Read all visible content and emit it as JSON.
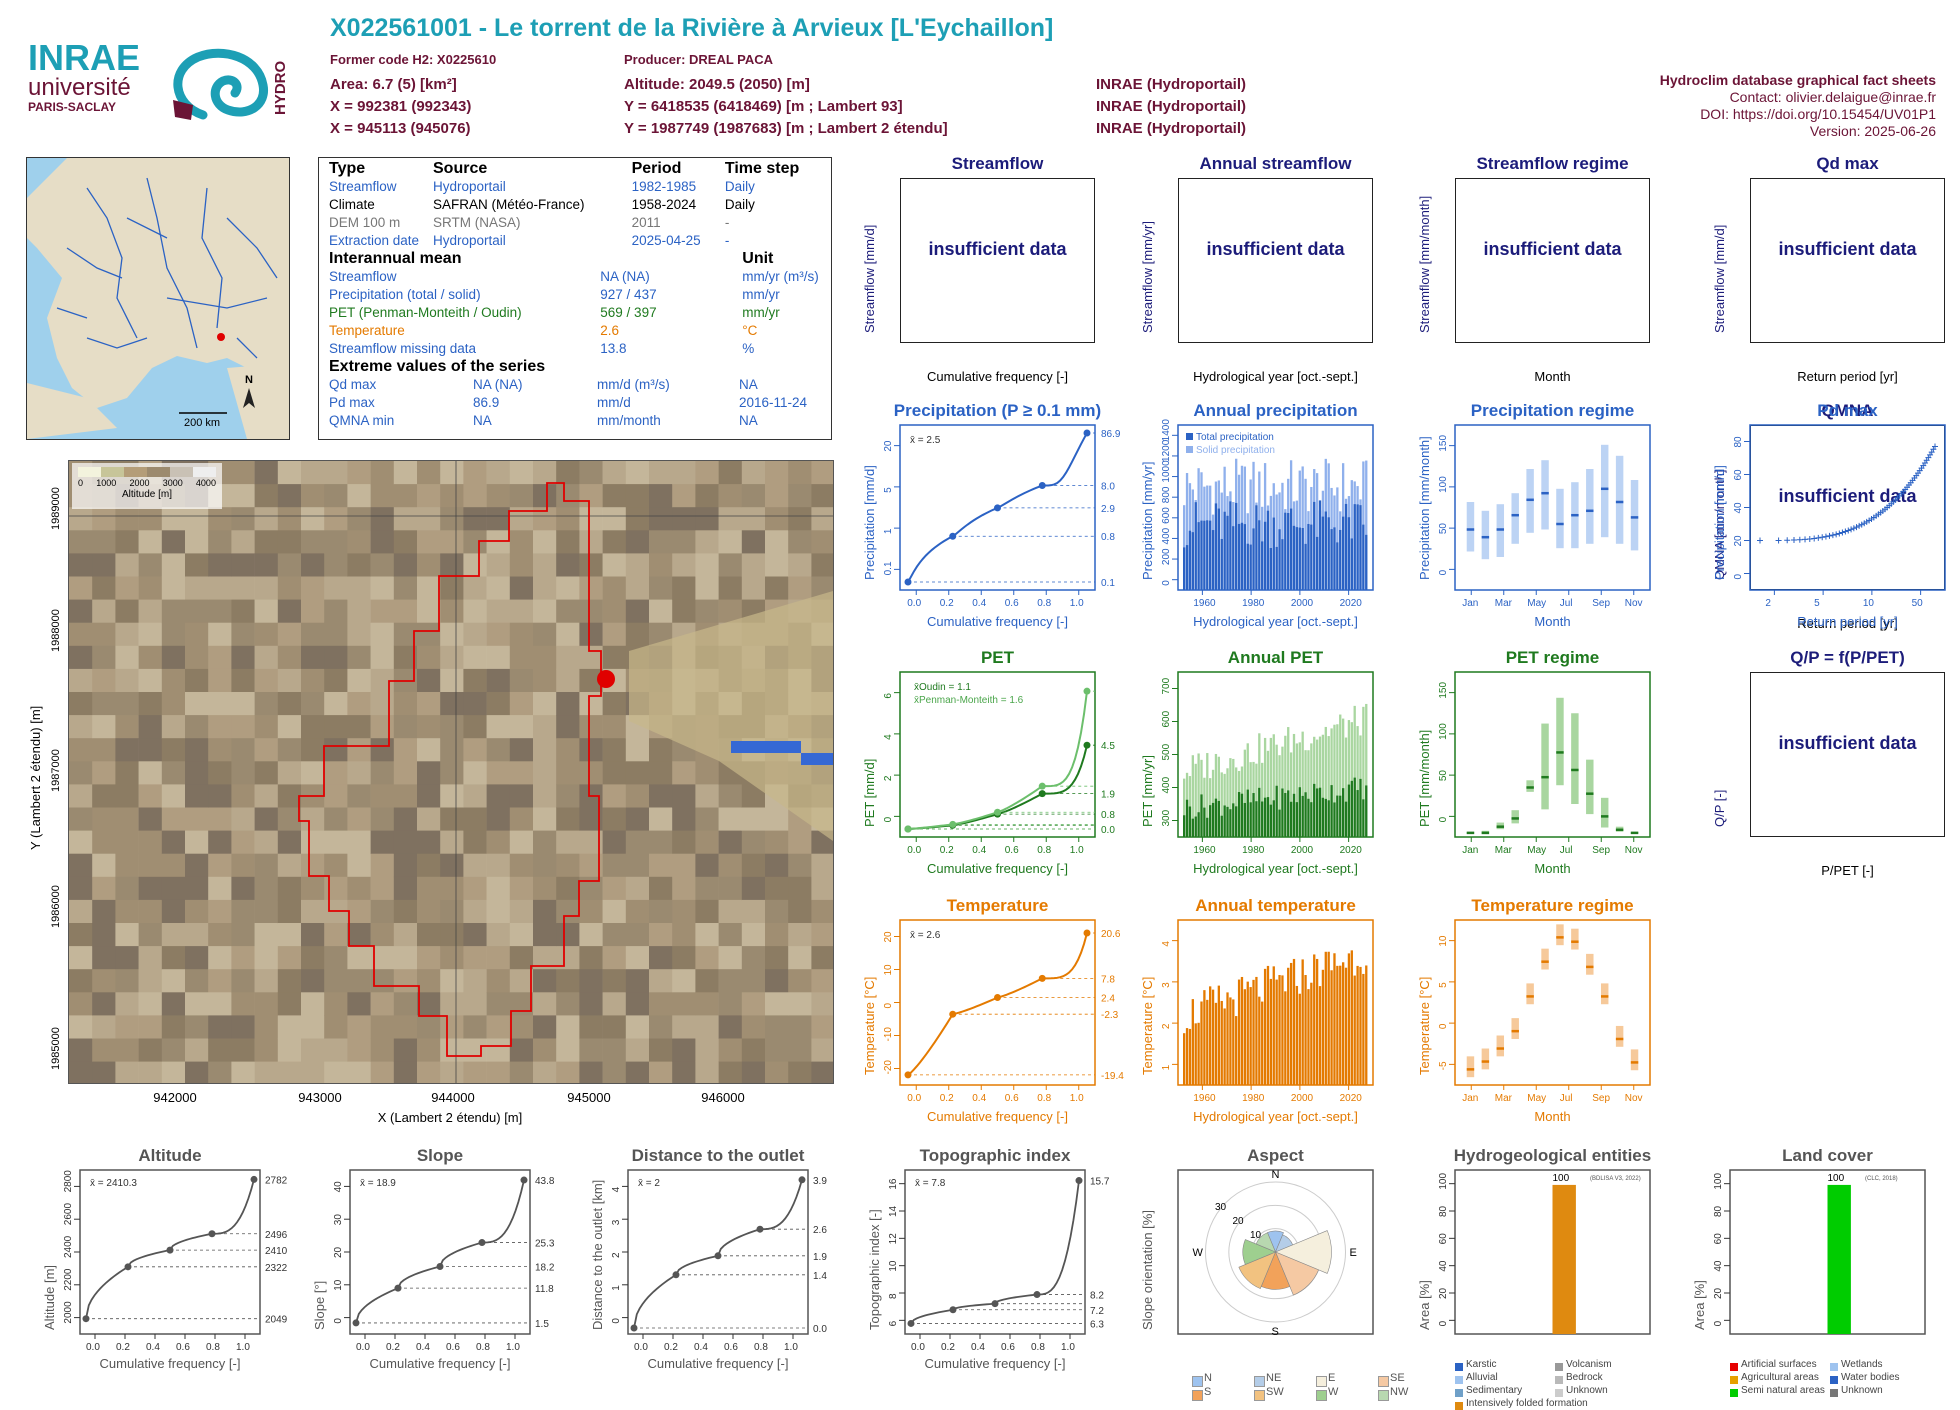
{
  "header": {
    "title": "X022561001 - Le torrent de la Rivière à Arvieux [L'Eychaillon]",
    "former_code": "Former code H2: X0225610",
    "producer": "Producer: DREAL PACA",
    "area": "Area: 6.7 (5) [km²]",
    "altitude": "Altitude: 2049.5 (2050) [m]",
    "x93": "X = 992381 (992343)",
    "y93": "Y = 6418535 (6418469) [m ; Lambert 93]",
    "x2": "X = 945113 (945076)",
    "y2": "Y = 1987749 (1987683) [m ; Lambert 2 étendu]",
    "src1": "INRAE (Hydroportail)",
    "src2": "INRAE (Hydroportail)",
    "src3": "INRAE (Hydroportail)",
    "db_title": "Hydroclim database graphical fact sheets",
    "contact": "Contact: olivier.delaigue@inrae.fr",
    "doi": "DOI: https://doi.org/10.15454/UV01P1",
    "version": "Version: 2025-06-26"
  },
  "logo": {
    "inrae": "INRAE",
    "universite": "université",
    "paris": "PARIS-SACLAY",
    "hydro": "HYDRO"
  },
  "minimap": {
    "north": "N",
    "scale": "200 km"
  },
  "info": {
    "h_type": "Type",
    "h_source": "Source",
    "h_period": "Period",
    "h_step": "Time step",
    "rows": [
      {
        "type": "Streamflow",
        "source": "Hydroportail",
        "period": "1982-1985",
        "step": "Daily"
      },
      {
        "type": "Climate",
        "source": "SAFRAN (Météo-France)",
        "period": "1958-2024",
        "step": "Daily"
      },
      {
        "type": "DEM 100 m",
        "source": "SRTM (NASA)",
        "period": "2011",
        "step": "-"
      },
      {
        "type": "Extraction date",
        "source": "Hydroportail",
        "period": "2025-04-25",
        "step": "-"
      }
    ],
    "h_interannual": "Interannual mean",
    "h_unit": "Unit",
    "means": [
      {
        "name": "Streamflow",
        "value": "NA (NA)",
        "unit": "mm/yr (m³/s)"
      },
      {
        "name": "Precipitation (total / solid)",
        "value": "927 / 437",
        "unit": "mm/yr"
      },
      {
        "name": "PET (Penman-Monteith / Oudin)",
        "value": "569 / 397",
        "unit": "mm/yr"
      },
      {
        "name": "Temperature",
        "value": "2.6",
        "unit": "°C"
      },
      {
        "name": "Streamflow missing data",
        "value": "13.8",
        "unit": "%"
      }
    ],
    "h_extreme": "Extreme values of the series",
    "extremes": [
      {
        "name": "Qd max",
        "value": "NA (NA)",
        "unit": "mm/d (m³/s)",
        "date": "NA"
      },
      {
        "name": "Pd max",
        "value": "86.9",
        "unit": "mm/d",
        "date": "2016-11-24"
      },
      {
        "name": "QMNA min",
        "value": "NA",
        "unit": "mm/month",
        "date": "NA"
      }
    ]
  },
  "dem": {
    "legend_ticks": [
      "0",
      "1000",
      "2000",
      "3000",
      "4000"
    ],
    "legend_title": "Altitude [m]",
    "xticks": [
      "942000",
      "943000",
      "944000",
      "945000",
      "946000"
    ],
    "yticks": [
      "1985000",
      "1986000",
      "1987000",
      "1988000",
      "1989000"
    ],
    "xlabel": "X (Lambert 2 étendu) [m]",
    "ylabel": "Y (Lambert 2 étendu) [m]"
  },
  "colors": {
    "precip": "#2b62c4",
    "pet": "#1f7a1f",
    "temp": "#e47a00",
    "navy": "#1c1c7a",
    "grey": "#555555",
    "outline": "#e00000"
  },
  "panels": {
    "insufficient": "insufficient data",
    "streamflow": {
      "title": "Streamflow",
      "ylabel": "Streamflow [mm/d]",
      "xlabel": "Cumulative frequency [-]"
    },
    "annual_streamflow": {
      "title": "Annual streamflow",
      "ylabel": "Streamflow [mm/yr]",
      "xlabel": "Hydrological year [oct.-sept.]"
    },
    "streamflow_regime": {
      "title": "Streamflow regime",
      "ylabel": "Streamflow [mm/month]",
      "xlabel": "Month"
    },
    "qd_max": {
      "title": "Qd max",
      "ylabel": "Streamflow [mm/d]",
      "xlabel": "Return period [yr]"
    },
    "precip": {
      "title": "Precipitation (P ≥ 0.1 mm)",
      "ylabel": "Precipitation [mm/d]",
      "xlabel": "Cumulative frequency [-]",
      "mean": "x̄ = 2.5"
    },
    "annual_precip": {
      "title": "Annual precipitation",
      "ylabel": "Precipitation [mm/yr]",
      "xlabel": "Hydrological year [oct.-sept.]",
      "legend1": "Total precipitation",
      "legend2": "Solid precipitation"
    },
    "precip_regime": {
      "title": "Precipitation regime",
      "ylabel": "Precipitation [mm/month]",
      "xlabel": "Month"
    },
    "pd_max": {
      "title": "Pd max",
      "ylabel": "Precipitation [mm/d]",
      "xlabel": "Return period [yr]"
    },
    "pet": {
      "title": "PET",
      "ylabel": "PET [mm/d]",
      "xlabel": "Cumulative frequency [-]",
      "legend1": "x̄Oudin = 1.1",
      "legend2": "x̄Penman-Monteith = 1.6"
    },
    "annual_pet": {
      "title": "Annual PET",
      "ylabel": "PET [mm/yr]",
      "xlabel": "Hydrological year [oct.-sept.]"
    },
    "pet_regime": {
      "title": "PET regime",
      "ylabel": "PET [mm/month]",
      "xlabel": "Month"
    },
    "qmna": {
      "title": "QMNA",
      "ylabel": "QMNA [mm/month]",
      "xlabel": "Return period [yr]"
    },
    "temp": {
      "title": "Temperature",
      "ylabel": "Temperature [°C]",
      "xlabel": "Cumulative frequency [-]",
      "mean": "x̄ = 2.6"
    },
    "annual_temp": {
      "title": "Annual temperature",
      "ylabel": "Temperature [°C]",
      "xlabel": "Hydrological year [oct.-sept.]"
    },
    "temp_regime": {
      "title": "Temperature regime",
      "ylabel": "Temperature [°C]",
      "xlabel": "Month"
    },
    "qp": {
      "title": "Q/P = f(P/PET)",
      "ylabel": "Q/P [-]",
      "xlabel": "P/PET [-]"
    },
    "altitude": {
      "title": "Altitude",
      "ylabel": "Altitude [m]",
      "xlabel": "Cumulative frequency [-]",
      "mean": "x̄ = 2410.3"
    },
    "slope": {
      "title": "Slope",
      "ylabel": "Slope [°]",
      "xlabel": "Cumulative frequency [-]",
      "mean": "x̄ = 18.9"
    },
    "distance": {
      "title": "Distance to the outlet",
      "ylabel": "Distance to the outlet [km]",
      "xlabel": "Cumulative frequency [-]",
      "mean": "x̄ = 2"
    },
    "topo": {
      "title": "Topographic index",
      "ylabel": "Topographic index [-]",
      "xlabel": "Cumulative frequency [-]",
      "mean": "x̄ = 7.8"
    },
    "aspect": {
      "title": "Aspect",
      "ylabel": "Slope orientation [%]"
    },
    "hydrogeo": {
      "title": "Hydrogeological entities",
      "ylabel": "Area [%]",
      "source": "(BDLISA V3, 2022)"
    },
    "landcover": {
      "title": "Land cover",
      "ylabel": "Area [%]",
      "source": "(CLC, 2018)"
    }
  },
  "chart_data": [
    {
      "type": "line",
      "name_key": "precip",
      "x": [
        0,
        0.25,
        0.5,
        0.75,
        1
      ],
      "y": [
        0.1,
        0.8,
        2.9,
        8.0,
        86.9
      ],
      "yscale": "log",
      "ylim": [
        0.1,
        86.9
      ],
      "yticks": [
        "0.1",
        "1",
        "5",
        "20"
      ],
      "right_labels": [
        "86.9",
        "8.0",
        "2.9",
        "0.8",
        "0.1"
      ],
      "xticks": [
        "0.0",
        "0.2",
        "0.4",
        "0.6",
        "0.8",
        "1.0"
      ]
    },
    {
      "type": "bar",
      "name_key": "annual_precip",
      "x": [
        1960,
        2022
      ],
      "ylim": [
        0,
        1600
      ],
      "yticks": [
        "0",
        "200",
        "400",
        "600",
        "800",
        "1000",
        "1200",
        "1400"
      ],
      "xticks": [
        "1960",
        "1980",
        "2000",
        "2020"
      ]
    },
    {
      "type": "boxplot",
      "name_key": "precip_regime",
      "categories": [
        "Jan",
        "Feb",
        "Mar",
        "Apr",
        "May",
        "Jun",
        "Jul",
        "Aug",
        "Sep",
        "Oct",
        "Nov",
        "Dec"
      ],
      "median": [
        55,
        48,
        55,
        68,
        82,
        88,
        60,
        68,
        72,
        92,
        80,
        66
      ],
      "q10": [
        35,
        28,
        30,
        42,
        52,
        55,
        38,
        38,
        42,
        48,
        42,
        36
      ],
      "q90": [
        80,
        72,
        78,
        88,
        110,
        118,
        92,
        98,
        110,
        132,
        122,
        100
      ],
      "ylim": [
        0,
        150
      ],
      "yticks": [
        "0",
        "50",
        "100",
        "150"
      ],
      "xticks": [
        "Jan",
        "Mar",
        "May",
        "Jul",
        "Sep",
        "Nov"
      ]
    },
    {
      "type": "scatter",
      "name_key": "pd_max",
      "xscale": "log",
      "xticks": [
        "2",
        "5",
        "10",
        "50"
      ],
      "ylim": [
        0,
        100
      ],
      "yticks": [
        "0",
        "20",
        "40",
        "60",
        "80"
      ],
      "y_range": [
        30,
        87
      ]
    },
    {
      "type": "line",
      "name_key": "pet",
      "series": [
        {
          "name": "x̄Oudin = 1.1",
          "x": [
            0,
            0.25,
            0.5,
            0.75,
            1
          ],
          "y": [
            0.0,
            0.2,
            0.8,
            1.9,
            4.5
          ]
        },
        {
          "name": "x̄Penman-Monteith = 1.6",
          "x": [
            0,
            0.25,
            0.5,
            0.75,
            1
          ],
          "y": [
            0.0,
            0.25,
            0.9,
            2.3,
            7.4
          ]
        }
      ],
      "ylim": [
        0,
        8
      ],
      "yticks": [
        "0",
        "2",
        "4",
        "6"
      ],
      "right_labels": [
        "4.5",
        "1.9",
        "0.8",
        "0.0"
      ],
      "xticks": [
        "0.0",
        "0.2",
        "0.4",
        "0.6",
        "0.8",
        "1.0"
      ]
    },
    {
      "type": "bar",
      "name_key": "annual_pet",
      "ylim": [
        300,
        750
      ],
      "yticks": [
        "300",
        "400",
        "500",
        "600",
        "700"
      ],
      "xticks": [
        "1960",
        "1980",
        "2000",
        "2020"
      ]
    },
    {
      "type": "boxplot",
      "name_key": "pet_regime",
      "categories": [
        "Jan",
        "Feb",
        "Mar",
        "Apr",
        "May",
        "Jun",
        "Jul",
        "Aug",
        "Sep",
        "Oct",
        "Nov",
        "Dec"
      ],
      "median": [
        4,
        4,
        10,
        18,
        48,
        58,
        82,
        65,
        42,
        20,
        7,
        4
      ],
      "q90": [
        5,
        6,
        14,
        26,
        55,
        110,
        135,
        120,
        75,
        38,
        10,
        5
      ],
      "ylim": [
        0,
        160
      ],
      "yticks": [
        "0",
        "50",
        "100",
        "150"
      ],
      "xticks": [
        "Jan",
        "Mar",
        "May",
        "Jul",
        "Sep",
        "Nov"
      ]
    },
    {
      "type": "line",
      "name_key": "temp",
      "x": [
        0,
        0.25,
        0.5,
        0.75,
        1
      ],
      "y": [
        -19.4,
        -2.3,
        2.4,
        7.8,
        20.6
      ],
      "ylim": [
        -20,
        22
      ],
      "yticks": [
        "-20",
        "-10",
        "0",
        "10",
        "20"
      ],
      "right_labels": [
        "20.6",
        "7.8",
        "2.4",
        "-2.3",
        "-19.4"
      ],
      "xticks": [
        "0.0",
        "0.2",
        "0.4",
        "0.6",
        "0.8",
        "1.0"
      ]
    },
    {
      "type": "bar",
      "name_key": "annual_temp",
      "ylim": [
        0,
        5
      ],
      "yticks": [
        "1",
        "2",
        "3",
        "4"
      ],
      "xticks": [
        "1960",
        "1980",
        "2000",
        "2020"
      ]
    },
    {
      "type": "boxplot",
      "name_key": "temp_regime",
      "categories": [
        "Jan",
        "Feb",
        "Mar",
        "Apr",
        "May",
        "Jun",
        "Jul",
        "Aug",
        "Sep",
        "Oct",
        "Nov",
        "Dec"
      ],
      "median": [
        -4.2,
        -3.3,
        -1.8,
        0.2,
        4.2,
        8.2,
        11.0,
        10.5,
        7.6,
        4.2,
        -0.7,
        -3.4
      ],
      "ylim": [
        -6,
        13
      ],
      "yticks": [
        "-5",
        "0",
        "5",
        "10"
      ],
      "xticks": [
        "Jan",
        "Mar",
        "May",
        "Jul",
        "Sep",
        "Nov"
      ]
    },
    {
      "type": "line",
      "name_key": "altitude",
      "x": [
        0,
        0.25,
        0.5,
        0.75,
        1
      ],
      "y": [
        2049,
        2322,
        2410,
        2496,
        2782
      ],
      "ylim": [
        2000,
        2800
      ],
      "yticks": [
        "2000",
        "2200",
        "2400",
        "2600",
        "2800"
      ],
      "right_labels": [
        "2782",
        "2496",
        "2410",
        "2322",
        "2049"
      ],
      "xticks": [
        "0.0",
        "0.2",
        "0.4",
        "0.6",
        "0.8",
        "1.0"
      ]
    },
    {
      "type": "line",
      "name_key": "slope",
      "x": [
        0,
        0.25,
        0.5,
        0.75,
        1
      ],
      "y": [
        1.5,
        11.8,
        18.2,
        25.3,
        43.8
      ],
      "ylim": [
        0,
        45
      ],
      "yticks": [
        "0",
        "10",
        "20",
        "30",
        "40"
      ],
      "right_labels": [
        "43.8",
        "25.3",
        "18.2",
        "11.8",
        "1.5"
      ],
      "xticks": [
        "0.0",
        "0.2",
        "0.4",
        "0.6",
        "0.8",
        "1.0"
      ]
    },
    {
      "type": "line",
      "name_key": "distance",
      "x": [
        0,
        0.25,
        0.5,
        0.75,
        1
      ],
      "y": [
        0.0,
        1.4,
        1.9,
        2.6,
        3.9
      ],
      "ylim": [
        0,
        4
      ],
      "yticks": [
        "0",
        "1",
        "2",
        "3",
        "4"
      ],
      "right_labels": [
        "3.9",
        "2.6",
        "1.9",
        "1.4",
        "0.0"
      ],
      "xticks": [
        "0.0",
        "0.2",
        "0.4",
        "0.6",
        "0.8",
        "1.0"
      ]
    },
    {
      "type": "line",
      "name_key": "topo",
      "x": [
        0,
        0.25,
        0.5,
        0.75,
        1
      ],
      "y": [
        6.3,
        7.2,
        7.6,
        8.2,
        15.7
      ],
      "ylim": [
        6,
        16
      ],
      "yticks": [
        "6",
        "8",
        "10",
        "12",
        "14",
        "16"
      ],
      "right_labels": [
        "15.7",
        "8.2",
        "7.2",
        "6.3"
      ],
      "xticks": [
        "0.0",
        "0.2",
        "0.4",
        "0.6",
        "0.8",
        "1.0"
      ]
    },
    {
      "type": "pie",
      "name_key": "aspect",
      "categories": [
        "N",
        "NE",
        "E",
        "SE",
        "S",
        "SW",
        "W",
        "NW"
      ],
      "values": [
        9,
        8,
        24,
        20,
        16,
        17,
        14,
        9
      ],
      "rings": [
        "10",
        "20",
        "30"
      ],
      "legend": [
        "N",
        "NE",
        "E",
        "SE",
        "S",
        "SW",
        "W",
        "NW"
      ],
      "colors": [
        "#9ec3ef",
        "#b4cde8",
        "#f5efdd",
        "#f5c9a3",
        "#f2a25a",
        "#f2c280",
        "#9ecf8f",
        "#b8d8b0"
      ]
    },
    {
      "type": "bar",
      "name_key": "hydrogeo",
      "categories": [
        "Intensively folded formation"
      ],
      "values": [
        100
      ],
      "ylim": [
        0,
        110
      ],
      "yticks": [
        "0",
        "20",
        "40",
        "60",
        "80",
        "100"
      ],
      "legend": [
        "Karstic",
        "Volcanism",
        "Alluvial",
        "Bedrock",
        "Sedimentary",
        "Unknown",
        "Intensively folded formation"
      ],
      "legend_colors": [
        "#2b62c4",
        "#999999",
        "#9ec3ef",
        "#b9b9b9",
        "#6fa0c8",
        "#cccccc",
        "#df8a10"
      ]
    },
    {
      "type": "bar",
      "name_key": "landcover",
      "categories": [
        "Semi natural areas"
      ],
      "values": [
        100
      ],
      "ylim": [
        0,
        110
      ],
      "yticks": [
        "0",
        "20",
        "40",
        "60",
        "80",
        "100"
      ],
      "legend": [
        "Artificial surfaces",
        "Wetlands",
        "Agricultural areas",
        "Water bodies",
        "Semi natural areas",
        "Unknown"
      ],
      "legend_colors": [
        "#e60000",
        "#9ec3ef",
        "#e6a000",
        "#2b62c4",
        "#00cc00",
        "#777777"
      ]
    }
  ]
}
